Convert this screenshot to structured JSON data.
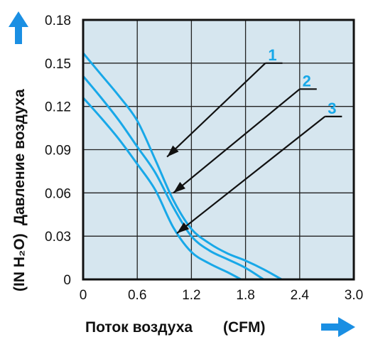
{
  "chart_data": {
    "type": "line",
    "xlabel_main": "Поток воздуха",
    "xlabel_unit": "(CFM)",
    "ylabel_main": "Давление воздуха",
    "ylabel_unit": "(IN H₂O)",
    "xlim": [
      0,
      3.0
    ],
    "ylim": [
      0,
      0.18
    ],
    "x_ticks": [
      "0",
      "0.6",
      "1.2",
      "1.8",
      "2.4",
      "3.0"
    ],
    "y_ticks": [
      "0",
      "0.03",
      "0.06",
      "0.09",
      "0.12",
      "0.15",
      "0.18"
    ],
    "grid": true,
    "plot_background": "#d6e6ef",
    "line_color": "#18a8e8",
    "accent_color": "#1a8fe3",
    "series": [
      {
        "x": [
          0,
          0.2,
          0.4,
          0.6,
          0.8,
          1.0,
          1.2,
          1.4,
          1.6,
          1.8,
          2.0,
          2.2
        ],
        "y": [
          0.157,
          0.142,
          0.127,
          0.11,
          0.083,
          0.055,
          0.035,
          0.025,
          0.018,
          0.013,
          0.007,
          0.0
        ]
      },
      {
        "x": [
          0,
          0.2,
          0.4,
          0.6,
          0.8,
          1.0,
          1.2,
          1.4,
          1.6,
          1.8,
          2.0
        ],
        "y": [
          0.141,
          0.126,
          0.11,
          0.092,
          0.074,
          0.05,
          0.03,
          0.02,
          0.014,
          0.008,
          0.0
        ]
      },
      {
        "x": [
          0,
          0.2,
          0.4,
          0.6,
          0.8,
          1.0,
          1.2,
          1.4,
          1.6,
          1.75
        ],
        "y": [
          0.126,
          0.112,
          0.097,
          0.08,
          0.062,
          0.036,
          0.019,
          0.011,
          0.005,
          0.0
        ]
      }
    ],
    "callouts": [
      {
        "label": "1",
        "target": [
          0.93,
          0.085
        ],
        "anchor": [
          2.02,
          0.15
        ]
      },
      {
        "label": "2",
        "target": [
          1.0,
          0.06
        ],
        "anchor": [
          2.4,
          0.132
        ]
      },
      {
        "label": "3",
        "target": [
          1.04,
          0.032
        ],
        "anchor": [
          2.68,
          0.113
        ]
      }
    ]
  }
}
